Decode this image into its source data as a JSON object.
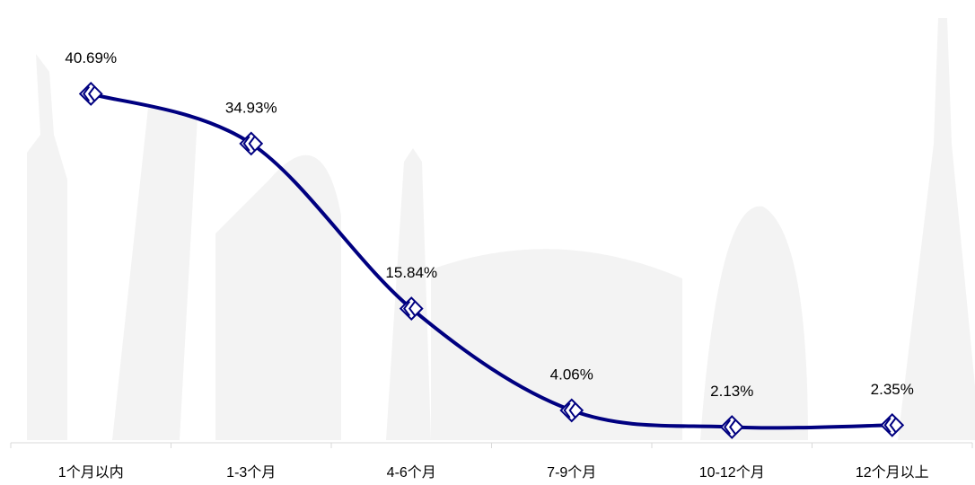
{
  "chart_data": {
    "type": "line",
    "categories": [
      "1个月以内",
      "1-3个月",
      "4-6个月",
      "7-9个月",
      "10-12个月",
      "12个月以上"
    ],
    "series": [
      {
        "color": "#000080",
        "values": [
          40.69,
          34.93,
          15.84,
          4.06,
          2.13,
          2.35
        ],
        "value_labels": [
          "40.69%",
          "34.93%",
          "15.84%",
          "4.06%",
          "2.13%",
          "2.35%"
        ]
      }
    ],
    "ylim": [
      0,
      45
    ]
  }
}
